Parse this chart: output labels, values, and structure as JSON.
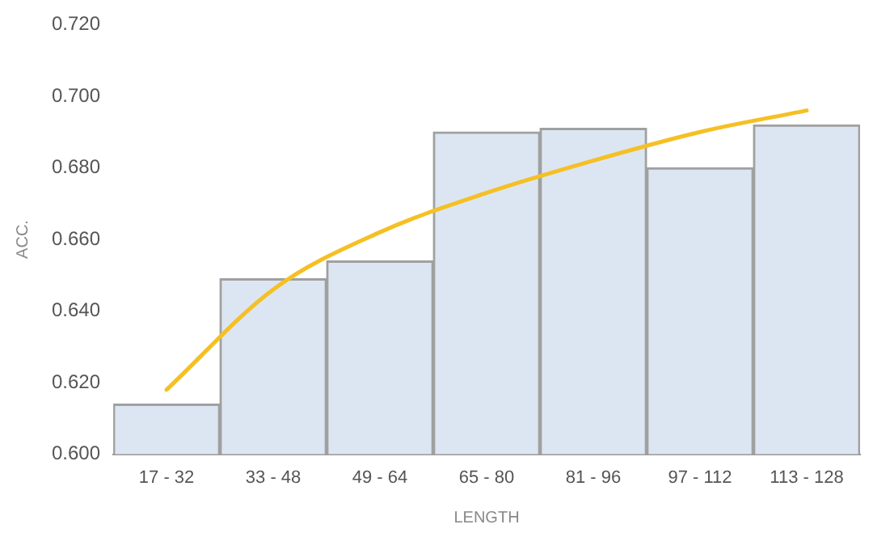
{
  "chart_data": {
    "type": "bar",
    "xlabel": "LENGTH",
    "ylabel": "ACC.",
    "categories": [
      "17 - 32",
      "33 - 48",
      "49 - 64",
      "65 - 80",
      "81 - 96",
      "97 - 112",
      "113 - 128"
    ],
    "series": [
      {
        "color": "#dce6f2",
        "values": [
          0.614,
          0.649,
          0.654,
          0.69,
          0.691,
          0.68,
          0.692
        ]
      },
      {
        "type": "line",
        "color": "#f5c024",
        "values": [
          0.618,
          0.646,
          0.662,
          0.673,
          0.682,
          0.69,
          0.696
        ]
      }
    ],
    "ylim": [
      0.6,
      0.72
    ],
    "yticks": [
      {
        "value": 0.6,
        "label": "0.600"
      },
      {
        "value": 0.62,
        "label": "0.620"
      },
      {
        "value": 0.64,
        "label": "0.640"
      },
      {
        "value": 0.66,
        "label": "0.660"
      },
      {
        "value": 0.68,
        "label": "0.680"
      },
      {
        "value": 0.7,
        "label": "0.700"
      },
      {
        "value": 0.72,
        "label": "0.720"
      }
    ],
    "grid": false,
    "legend": false,
    "marker": "none"
  }
}
